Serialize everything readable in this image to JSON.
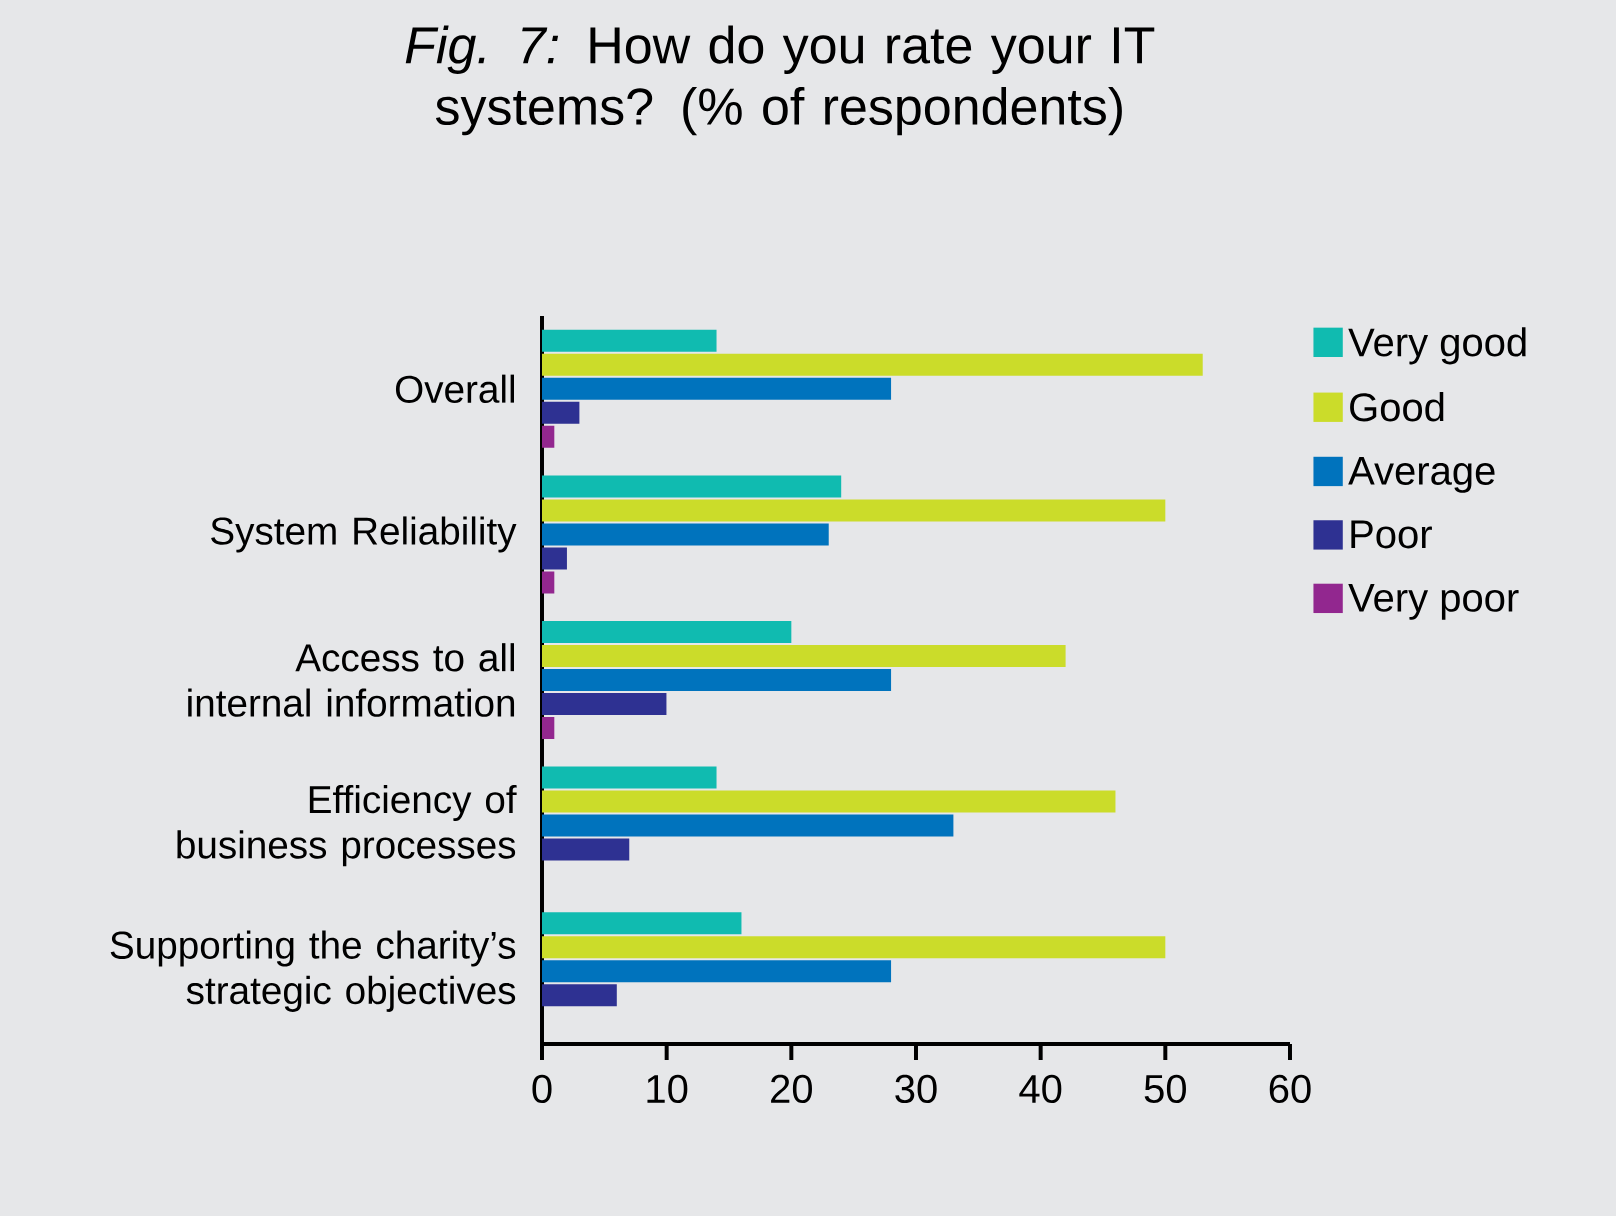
{
  "chart_data": {
    "type": "bar",
    "orientation": "horizontal",
    "title": "*Fig. 7:* How do you rate your IT systems? (% of respondents)",
    "categories": [
      "Overall",
      "System Reliability",
      "Access to all internal information",
      "Efficiency of business processes",
      "Supporting the charity’s strategic objectives"
    ],
    "series": [
      {
        "name": "Very good",
        "color": "#10bbb0",
        "values": [
          14,
          24,
          20,
          14,
          16
        ]
      },
      {
        "name": "Good",
        "color": "#cbdc2a",
        "values": [
          53,
          50,
          42,
          46,
          50
        ]
      },
      {
        "name": "Average",
        "color": "#0073bd",
        "values": [
          28,
          23,
          28,
          33,
          28
        ]
      },
      {
        "name": "Poor",
        "color": "#2e3192",
        "values": [
          3,
          2,
          10,
          7,
          6
        ]
      },
      {
        "name": "Very poor",
        "color": "#92278f",
        "values": [
          1,
          1,
          1,
          0,
          0
        ]
      }
    ],
    "xlim": [
      0,
      60
    ],
    "xticks": [
      0,
      10,
      20,
      30,
      40,
      50,
      60
    ],
    "grid": false,
    "legend": "right"
  }
}
